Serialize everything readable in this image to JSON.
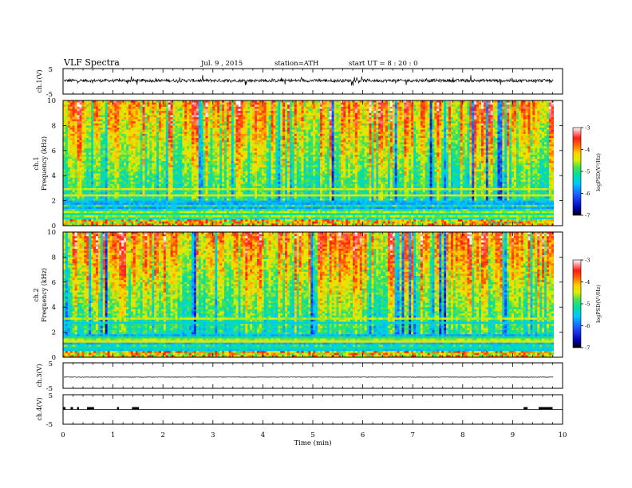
{
  "header": {
    "title": "VLF  Spectra",
    "date": "Jul.  9  , 2015",
    "station": "station=ATH",
    "start_time": "start  UT  =    8  : 20 : 0"
  },
  "chart_data": [
    {
      "type": "line",
      "panel": "ch1-waveform",
      "ylabel": "ch.1(V)",
      "ylim": [
        -5,
        5
      ],
      "yticks": [
        "5",
        "-5"
      ],
      "baseline_v": 0.3,
      "amplitude_v": 1.2,
      "color": "#000000"
    },
    {
      "type": "heatmap",
      "panel": "ch1-spectrogram",
      "ylabel_outer": "ch.1",
      "ylabel": "Frequency  (kHz)",
      "ylim": [
        0,
        10
      ],
      "yticks": [
        "0",
        "2",
        "4",
        "6",
        "8",
        "10"
      ],
      "colorbar": {
        "label": "logPSD(V²/Hz)",
        "range": [
          -7,
          -3
        ],
        "ticks": [
          "-3",
          "-4",
          "-5",
          "-6",
          "-7"
        ]
      }
    },
    {
      "type": "heatmap",
      "panel": "ch2-spectrogram",
      "ylabel_outer": "ch.2",
      "ylabel": "Frequency  (kHz)",
      "ylim": [
        0,
        10
      ],
      "yticks": [
        "0",
        "2",
        "4",
        "6",
        "8",
        "10"
      ],
      "colorbar": {
        "label": "logPSD(V²/Hz)",
        "range": [
          -7,
          -3
        ],
        "ticks": [
          "-3",
          "-4",
          "-5",
          "-6",
          "-7"
        ]
      }
    },
    {
      "type": "line",
      "panel": "ch3-waveform",
      "ylabel": "ch.3(V)",
      "ylim": [
        -5,
        5
      ],
      "yticks": [
        "5",
        "-5"
      ],
      "baseline_v": -0.6,
      "color": "#000000"
    },
    {
      "type": "line",
      "panel": "ch4-waveform",
      "ylabel": "ch.4(V)",
      "ylim": [
        -5,
        5
      ],
      "yticks": [
        "5",
        "-5"
      ],
      "baseline_v": 0.0,
      "pulse_intervals_min": [
        [
          0.0,
          0.05
        ],
        [
          0.15,
          0.2
        ],
        [
          0.28,
          0.32
        ],
        [
          0.48,
          0.62
        ],
        [
          1.08,
          1.12
        ],
        [
          1.38,
          1.52
        ],
        [
          9.22,
          9.3
        ],
        [
          9.52,
          9.8
        ]
      ],
      "color": "#000000"
    }
  ],
  "time_axis": {
    "xlabel": "Time  (min)",
    "xlim": [
      0,
      10
    ],
    "ticks": [
      "0",
      "1",
      "2",
      "3",
      "4",
      "5",
      "6",
      "7",
      "8",
      "9",
      "10"
    ],
    "data_end_min": 9.82
  }
}
